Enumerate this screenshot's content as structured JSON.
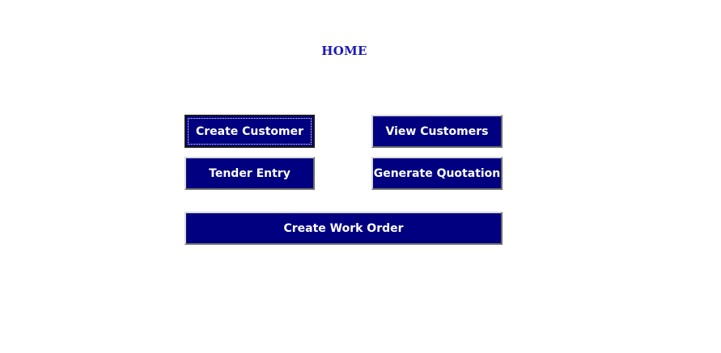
{
  "page": {
    "title": "HOME"
  },
  "buttons": {
    "create_customer": "Create Customer",
    "view_customers": "View Customers",
    "tender_entry": "Tender Entry",
    "generate_quotation": "Generate Quotation",
    "create_work_order": "Create Work Order"
  },
  "colors": {
    "button_background": "#000080",
    "button_text": "#ffffff",
    "title_text": "#1a1ab8"
  }
}
